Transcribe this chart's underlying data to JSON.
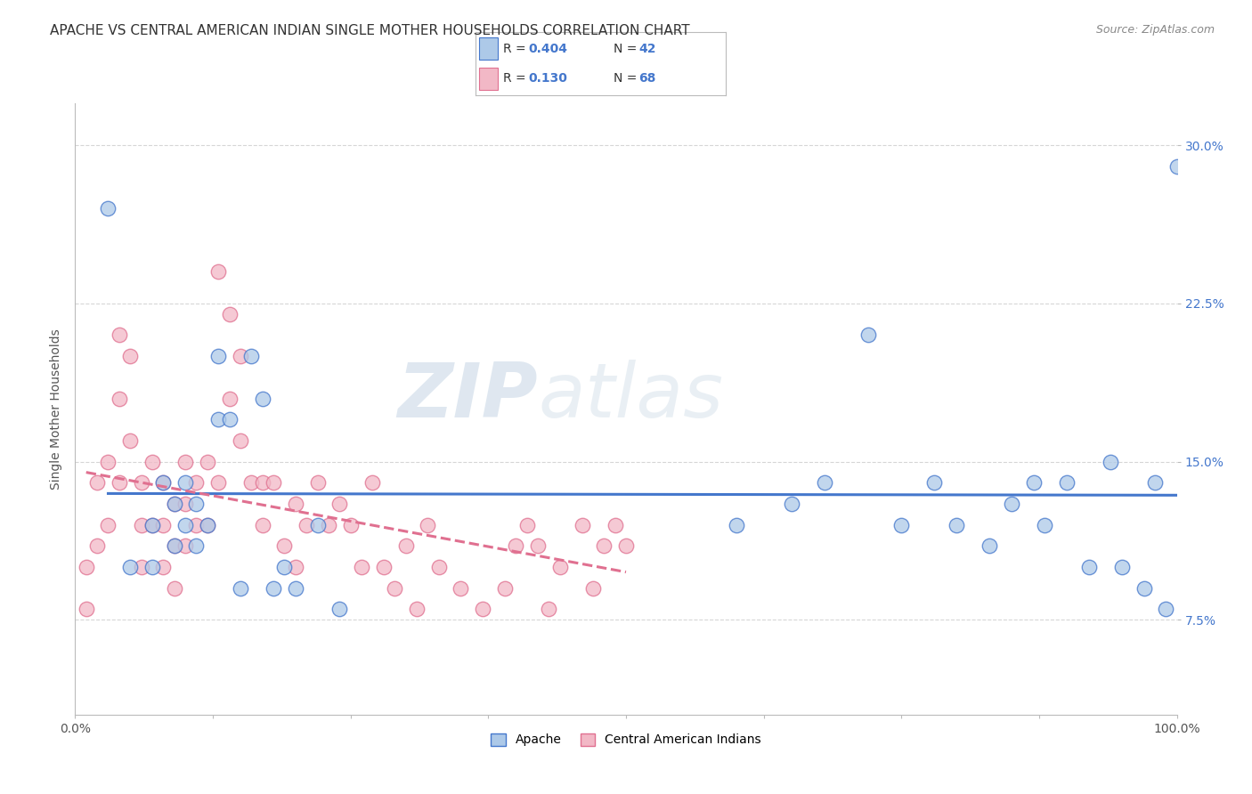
{
  "title": "APACHE VS CENTRAL AMERICAN INDIAN SINGLE MOTHER HOUSEHOLDS CORRELATION CHART",
  "source": "Source: ZipAtlas.com",
  "xlabel": "",
  "ylabel": "Single Mother Households",
  "xlim": [
    0,
    100
  ],
  "ylim": [
    3,
    32
  ],
  "xticks": [
    0,
    12.5,
    25,
    37.5,
    50,
    62.5,
    75,
    87.5,
    100
  ],
  "xtick_labels": [
    "0.0%",
    "",
    "",
    "",
    "",
    "",
    "",
    "",
    "100.0%"
  ],
  "yticks": [
    7.5,
    15.0,
    22.5,
    30.0
  ],
  "color_apache": "#adc9e8",
  "color_ca_indian": "#f2b8c6",
  "color_apache_line": "#4477cc",
  "color_ca_line": "#e07090",
  "watermark_zip": "ZIP",
  "watermark_atlas": "atlas",
  "apache_x": [
    3,
    5,
    7,
    7,
    8,
    9,
    9,
    10,
    10,
    11,
    11,
    12,
    13,
    13,
    14,
    15,
    16,
    17,
    18,
    19,
    20,
    22,
    24,
    60,
    65,
    68,
    72,
    75,
    78,
    80,
    83,
    85,
    87,
    88,
    90,
    92,
    94,
    95,
    97,
    98,
    99,
    100
  ],
  "apache_y": [
    27,
    10,
    10,
    12,
    14,
    13,
    11,
    14,
    12,
    13,
    11,
    12,
    20,
    17,
    17,
    9,
    20,
    18,
    9,
    10,
    9,
    12,
    8,
    12,
    13,
    14,
    21,
    12,
    14,
    12,
    11,
    13,
    14,
    12,
    14,
    10,
    15,
    10,
    9,
    14,
    8,
    29
  ],
  "ca_x": [
    1,
    1,
    2,
    2,
    3,
    3,
    4,
    4,
    4,
    5,
    5,
    6,
    6,
    6,
    7,
    7,
    8,
    8,
    8,
    9,
    9,
    9,
    10,
    10,
    10,
    11,
    11,
    12,
    12,
    13,
    13,
    14,
    14,
    15,
    15,
    16,
    17,
    17,
    18,
    19,
    20,
    20,
    21,
    22,
    23,
    24,
    25,
    26,
    27,
    28,
    29,
    30,
    31,
    32,
    33,
    35,
    37,
    39,
    40,
    41,
    42,
    43,
    44,
    46,
    47,
    48,
    49,
    50
  ],
  "ca_y": [
    10,
    8,
    14,
    11,
    15,
    12,
    21,
    18,
    14,
    20,
    16,
    14,
    12,
    10,
    15,
    12,
    14,
    12,
    10,
    13,
    11,
    9,
    15,
    13,
    11,
    14,
    12,
    15,
    12,
    24,
    14,
    22,
    18,
    20,
    16,
    14,
    14,
    12,
    14,
    11,
    13,
    10,
    12,
    14,
    12,
    13,
    12,
    10,
    14,
    10,
    9,
    11,
    8,
    12,
    10,
    9,
    8,
    9,
    11,
    12,
    11,
    8,
    10,
    12,
    9,
    11,
    12,
    11
  ],
  "legend_r1_label": "R = ",
  "legend_r1_val": "0.404",
  "legend_n1_label": "N = ",
  "legend_n1_val": "42",
  "legend_r2_label": "R =  ",
  "legend_r2_val": "0.130",
  "legend_n2_label": "N = ",
  "legend_n2_val": "68"
}
